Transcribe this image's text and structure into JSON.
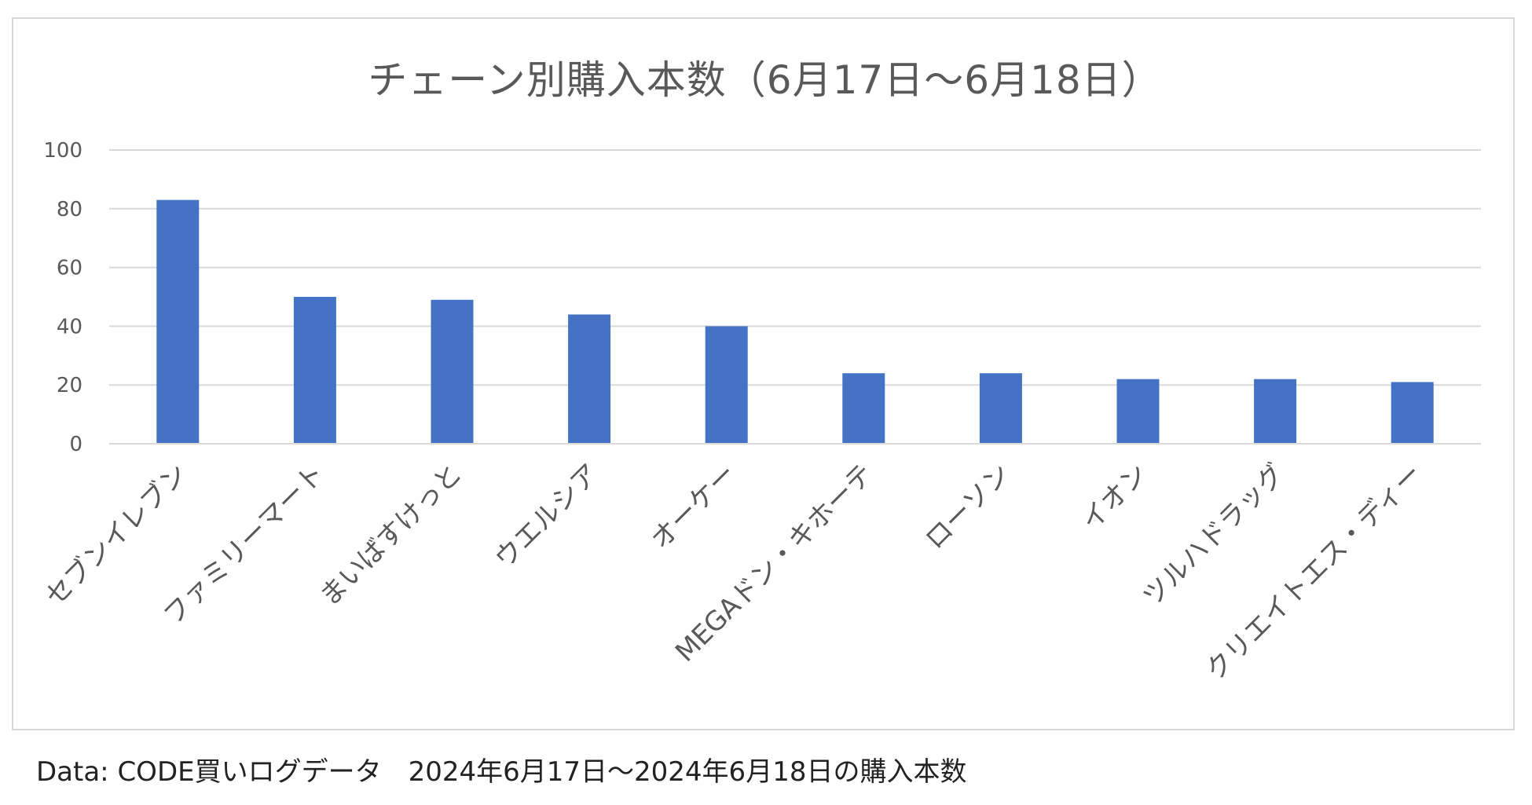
{
  "chart_data": {
    "type": "bar",
    "title": "チェーン別購入本数（6月17日〜6月18日）",
    "xlabel": "",
    "ylabel": "",
    "ylim": [
      0,
      100
    ],
    "yticks": [
      0,
      20,
      40,
      60,
      80,
      100
    ],
    "grid": true,
    "legend": "none",
    "bar_color": "#4472C4",
    "categories": [
      "セブンイレブン",
      "ファミリーマート",
      "まいばすけっと",
      "ウエルシア",
      "オーケー",
      "MEGAドン・キホーテ",
      "ローソン",
      "イオン",
      "ツルハドラッグ",
      "クリエイトエス・ディー"
    ],
    "values": [
      83,
      50,
      49,
      44,
      40,
      24,
      24,
      22,
      22,
      21
    ]
  },
  "footer": {
    "source": "Data: CODE買いログデータ　2024年6月17日〜2024年6月18日の購入本数"
  }
}
